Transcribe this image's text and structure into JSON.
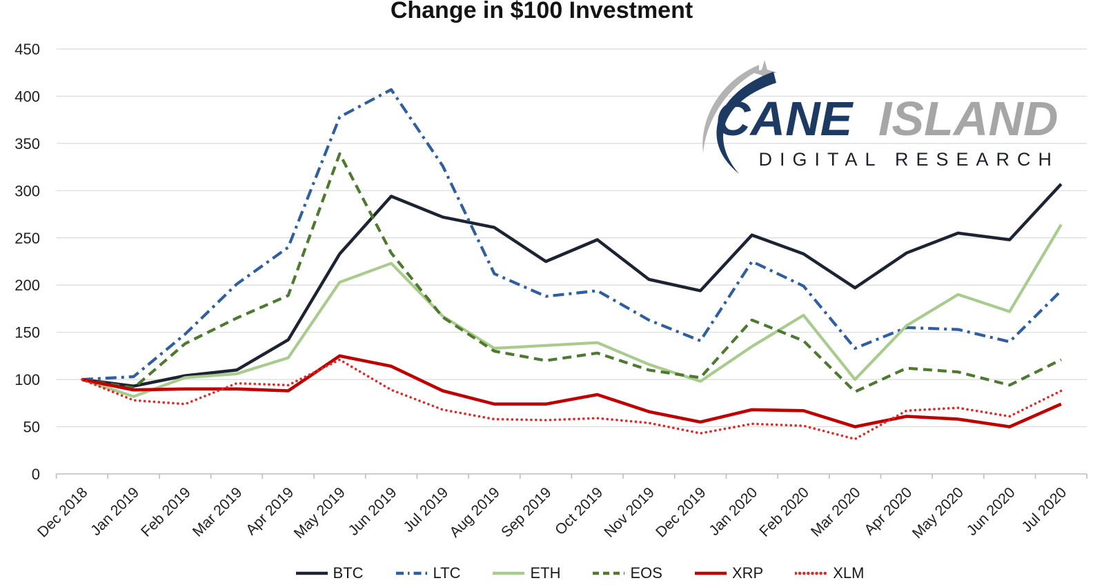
{
  "title": "Change in $100 Investment",
  "logo": {
    "name_primary": "CANE",
    "name_secondary": "ISLAND",
    "subtitle": "DIGITAL   RESEARCH",
    "colors": {
      "primary_text": "#1d3a63",
      "secondary_text": "#a6a6a6",
      "subtitle_text": "#1c222b",
      "swoosh_gray": "#b3b3b3",
      "swoosh_navy": "#1d3a63"
    }
  },
  "chart_data": {
    "type": "line",
    "title": "Change in $100 Investment",
    "xlabel": "",
    "ylabel": "",
    "ylim": [
      0,
      450
    ],
    "ytick_step": 50,
    "y_ticks": [
      "0",
      "50",
      "100",
      "150",
      "200",
      "250",
      "300",
      "350",
      "400",
      "450"
    ],
    "grid": true,
    "legend_position": "bottom",
    "categories": [
      "Dec 2018",
      "Jan 2019",
      "Feb 2019",
      "Mar 2019",
      "Apr 2019",
      "May 2019",
      "Jun 2019",
      "Jul 2019",
      "Aug 2019",
      "Sep 2019",
      "Oct 2019",
      "Nov 2019",
      "Dec 2019",
      "Jan 2020",
      "Feb 2020",
      "Mar 2020",
      "Apr 2020",
      "May 2020",
      "Jun 2020",
      "Jul 2020"
    ],
    "series": [
      {
        "name": "BTC",
        "style": "solid",
        "color": "#1c2433",
        "width": 4.5,
        "values": [
          100,
          93,
          104,
          110,
          142,
          233,
          294,
          272,
          261,
          225,
          248,
          206,
          194,
          253,
          233,
          197,
          234,
          255,
          248,
          307
        ]
      },
      {
        "name": "LTC",
        "style": "dashdot",
        "color": "#2f5f9e",
        "width": 4.2,
        "values": [
          100,
          103,
          148,
          201,
          240,
          378,
          407,
          326,
          212,
          188,
          194,
          163,
          141,
          225,
          199,
          133,
          155,
          153,
          140,
          194
        ]
      },
      {
        "name": "ETH",
        "style": "solid",
        "color": "#a9cb8e",
        "width": 4.2,
        "values": [
          100,
          82,
          102,
          106,
          123,
          203,
          223,
          167,
          133,
          136,
          139,
          116,
          98,
          135,
          168,
          100,
          157,
          190,
          172,
          264
        ]
      },
      {
        "name": "EOS",
        "style": "dashed",
        "color": "#4e7a2f",
        "width": 4.2,
        "values": [
          100,
          91,
          138,
          165,
          189,
          339,
          234,
          166,
          130,
          120,
          128,
          110,
          102,
          163,
          141,
          87,
          112,
          108,
          94,
          121
        ]
      },
      {
        "name": "XRP",
        "style": "solid",
        "color": "#c00000",
        "width": 4.6,
        "values": [
          100,
          89,
          90,
          90,
          88,
          125,
          114,
          88,
          74,
          74,
          84,
          66,
          55,
          68,
          67,
          50,
          61,
          58,
          50,
          74
        ]
      },
      {
        "name": "XLM",
        "style": "dotted",
        "color": "#e22726",
        "width": 3.6,
        "values": [
          100,
          78,
          74,
          96,
          94,
          121,
          89,
          68,
          58,
          57,
          59,
          54,
          43,
          53,
          51,
          37,
          67,
          70,
          61,
          88
        ]
      }
    ],
    "colors": {
      "gridline": "#d9d9d9",
      "axis": "#bdbdbd",
      "tick_label": "#212121"
    }
  }
}
